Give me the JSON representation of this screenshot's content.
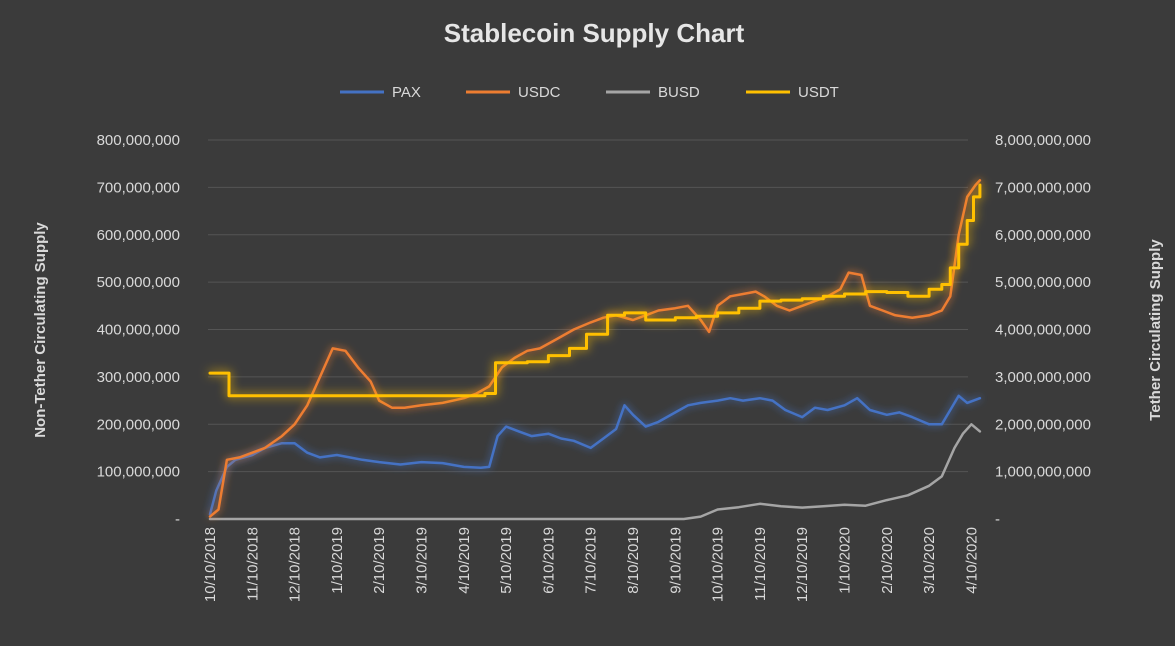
{
  "chart_data": {
    "type": "line",
    "title": "Stablecoin Supply Chart",
    "ylabel_left": "Non-Tether Circulating Supply",
    "ylabel_right": "Tether Circulating Supply",
    "ylim_left": [
      0,
      800000000
    ],
    "ylim_right": [
      0,
      8000000000
    ],
    "yticks_left": [
      "-",
      "100,000,000",
      "200,000,000",
      "300,000,000",
      "400,000,000",
      "500,000,000",
      "600,000,000",
      "700,000,000",
      "800,000,000"
    ],
    "yticks_right": [
      "-",
      "1,000,000,000",
      "2,000,000,000",
      "3,000,000,000",
      "4,000,000,000",
      "5,000,000,000",
      "6,000,000,000",
      "7,000,000,000",
      "8,000,000,000"
    ],
    "x_tick_labels": [
      "10/10/2018",
      "11/10/2018",
      "12/10/2018",
      "1/10/2019",
      "2/10/2019",
      "3/10/2019",
      "4/10/2019",
      "5/10/2019",
      "6/10/2019",
      "7/10/2019",
      "8/10/2019",
      "9/10/2019",
      "10/10/2019",
      "11/10/2019",
      "12/10/2019",
      "1/10/2020",
      "2/10/2020",
      "3/10/2020",
      "4/10/2020"
    ],
    "x_range": [
      0,
      18.2
    ],
    "grid": true,
    "legend_position": "top",
    "series": [
      {
        "name": "PAX",
        "axis": "left",
        "color": "#4472c4",
        "step": false,
        "points": [
          [
            0,
            10000000
          ],
          [
            0.15,
            60000000
          ],
          [
            0.4,
            110000000
          ],
          [
            0.6,
            125000000
          ],
          [
            1,
            135000000
          ],
          [
            1.3,
            150000000
          ],
          [
            1.7,
            160000000
          ],
          [
            2,
            160000000
          ],
          [
            2.3,
            140000000
          ],
          [
            2.6,
            130000000
          ],
          [
            3,
            135000000
          ],
          [
            3.3,
            130000000
          ],
          [
            3.6,
            125000000
          ],
          [
            4,
            120000000
          ],
          [
            4.5,
            115000000
          ],
          [
            5,
            120000000
          ],
          [
            5.5,
            118000000
          ],
          [
            6,
            110000000
          ],
          [
            6.4,
            108000000
          ],
          [
            6.6,
            110000000
          ],
          [
            6.8,
            175000000
          ],
          [
            7,
            195000000
          ],
          [
            7.3,
            185000000
          ],
          [
            7.6,
            175000000
          ],
          [
            8,
            180000000
          ],
          [
            8.3,
            170000000
          ],
          [
            8.6,
            165000000
          ],
          [
            9,
            150000000
          ],
          [
            9.3,
            170000000
          ],
          [
            9.6,
            190000000
          ],
          [
            9.8,
            240000000
          ],
          [
            10,
            220000000
          ],
          [
            10.3,
            195000000
          ],
          [
            10.6,
            205000000
          ],
          [
            11,
            225000000
          ],
          [
            11.3,
            240000000
          ],
          [
            11.6,
            245000000
          ],
          [
            12,
            250000000
          ],
          [
            12.3,
            255000000
          ],
          [
            12.6,
            250000000
          ],
          [
            13,
            255000000
          ],
          [
            13.3,
            250000000
          ],
          [
            13.6,
            230000000
          ],
          [
            14,
            215000000
          ],
          [
            14.3,
            235000000
          ],
          [
            14.6,
            230000000
          ],
          [
            15,
            240000000
          ],
          [
            15.3,
            255000000
          ],
          [
            15.6,
            230000000
          ],
          [
            16,
            220000000
          ],
          [
            16.3,
            225000000
          ],
          [
            16.6,
            215000000
          ],
          [
            17,
            200000000
          ],
          [
            17.3,
            200000000
          ],
          [
            17.5,
            230000000
          ],
          [
            17.7,
            260000000
          ],
          [
            17.9,
            245000000
          ],
          [
            18.2,
            255000000
          ]
        ]
      },
      {
        "name": "USDC",
        "axis": "left",
        "color": "#ed7d31",
        "step": false,
        "points": [
          [
            0,
            5000000
          ],
          [
            0.2,
            20000000
          ],
          [
            0.4,
            125000000
          ],
          [
            0.7,
            130000000
          ],
          [
            1,
            140000000
          ],
          [
            1.3,
            150000000
          ],
          [
            1.7,
            175000000
          ],
          [
            2,
            200000000
          ],
          [
            2.3,
            240000000
          ],
          [
            2.6,
            300000000
          ],
          [
            2.9,
            360000000
          ],
          [
            3.2,
            355000000
          ],
          [
            3.5,
            320000000
          ],
          [
            3.8,
            290000000
          ],
          [
            4,
            250000000
          ],
          [
            4.3,
            235000000
          ],
          [
            4.6,
            235000000
          ],
          [
            5,
            240000000
          ],
          [
            5.5,
            245000000
          ],
          [
            6,
            255000000
          ],
          [
            6.3,
            265000000
          ],
          [
            6.6,
            280000000
          ],
          [
            6.9,
            320000000
          ],
          [
            7.2,
            340000000
          ],
          [
            7.5,
            355000000
          ],
          [
            7.8,
            360000000
          ],
          [
            8.2,
            380000000
          ],
          [
            8.6,
            400000000
          ],
          [
            9,
            415000000
          ],
          [
            9.3,
            425000000
          ],
          [
            9.6,
            430000000
          ],
          [
            10,
            420000000
          ],
          [
            10.3,
            430000000
          ],
          [
            10.6,
            440000000
          ],
          [
            11,
            445000000
          ],
          [
            11.3,
            450000000
          ],
          [
            11.6,
            420000000
          ],
          [
            11.8,
            395000000
          ],
          [
            12,
            450000000
          ],
          [
            12.3,
            470000000
          ],
          [
            12.6,
            475000000
          ],
          [
            12.9,
            480000000
          ],
          [
            13.1,
            470000000
          ],
          [
            13.4,
            450000000
          ],
          [
            13.7,
            440000000
          ],
          [
            14,
            450000000
          ],
          [
            14.3,
            460000000
          ],
          [
            14.6,
            470000000
          ],
          [
            14.9,
            485000000
          ],
          [
            15.1,
            520000000
          ],
          [
            15.4,
            515000000
          ],
          [
            15.6,
            450000000
          ],
          [
            15.9,
            440000000
          ],
          [
            16.2,
            430000000
          ],
          [
            16.6,
            425000000
          ],
          [
            17,
            430000000
          ],
          [
            17.3,
            440000000
          ],
          [
            17.5,
            470000000
          ],
          [
            17.7,
            600000000
          ],
          [
            17.9,
            680000000
          ],
          [
            18.1,
            705000000
          ],
          [
            18.2,
            715000000
          ]
        ]
      },
      {
        "name": "BUSD",
        "axis": "left",
        "color": "#a5a5a5",
        "step": false,
        "points": [
          [
            0,
            0
          ],
          [
            11.2,
            0
          ],
          [
            11.6,
            5000000
          ],
          [
            12,
            20000000
          ],
          [
            12.5,
            25000000
          ],
          [
            13,
            32000000
          ],
          [
            13.5,
            27000000
          ],
          [
            14,
            24000000
          ],
          [
            14.5,
            27000000
          ],
          [
            15,
            30000000
          ],
          [
            15.5,
            28000000
          ],
          [
            16,
            40000000
          ],
          [
            16.5,
            50000000
          ],
          [
            17,
            70000000
          ],
          [
            17.3,
            90000000
          ],
          [
            17.6,
            150000000
          ],
          [
            17.8,
            180000000
          ],
          [
            18,
            200000000
          ],
          [
            18.2,
            185000000
          ]
        ]
      },
      {
        "name": "USDT",
        "axis": "right",
        "color": "#ffc000",
        "step": true,
        "points": [
          [
            0,
            3080000000
          ],
          [
            0.45,
            2600000000
          ],
          [
            6.5,
            2650000000
          ],
          [
            6.75,
            3300000000
          ],
          [
            7.5,
            3320000000
          ],
          [
            8,
            3450000000
          ],
          [
            8.5,
            3600000000
          ],
          [
            8.9,
            3900000000
          ],
          [
            9.4,
            4300000000
          ],
          [
            9.8,
            4350000000
          ],
          [
            10.3,
            4200000000
          ],
          [
            11,
            4250000000
          ],
          [
            11.5,
            4280000000
          ],
          [
            12,
            4350000000
          ],
          [
            12.5,
            4450000000
          ],
          [
            13,
            4600000000
          ],
          [
            13.5,
            4620000000
          ],
          [
            14,
            4650000000
          ],
          [
            14.5,
            4700000000
          ],
          [
            15,
            4750000000
          ],
          [
            15.5,
            4800000000
          ],
          [
            16,
            4780000000
          ],
          [
            16.5,
            4700000000
          ],
          [
            17,
            4850000000
          ],
          [
            17.3,
            4950000000
          ],
          [
            17.5,
            5300000000
          ],
          [
            17.7,
            5800000000
          ],
          [
            17.9,
            6300000000
          ],
          [
            18.05,
            6800000000
          ],
          [
            18.2,
            7050000000
          ]
        ]
      }
    ]
  }
}
